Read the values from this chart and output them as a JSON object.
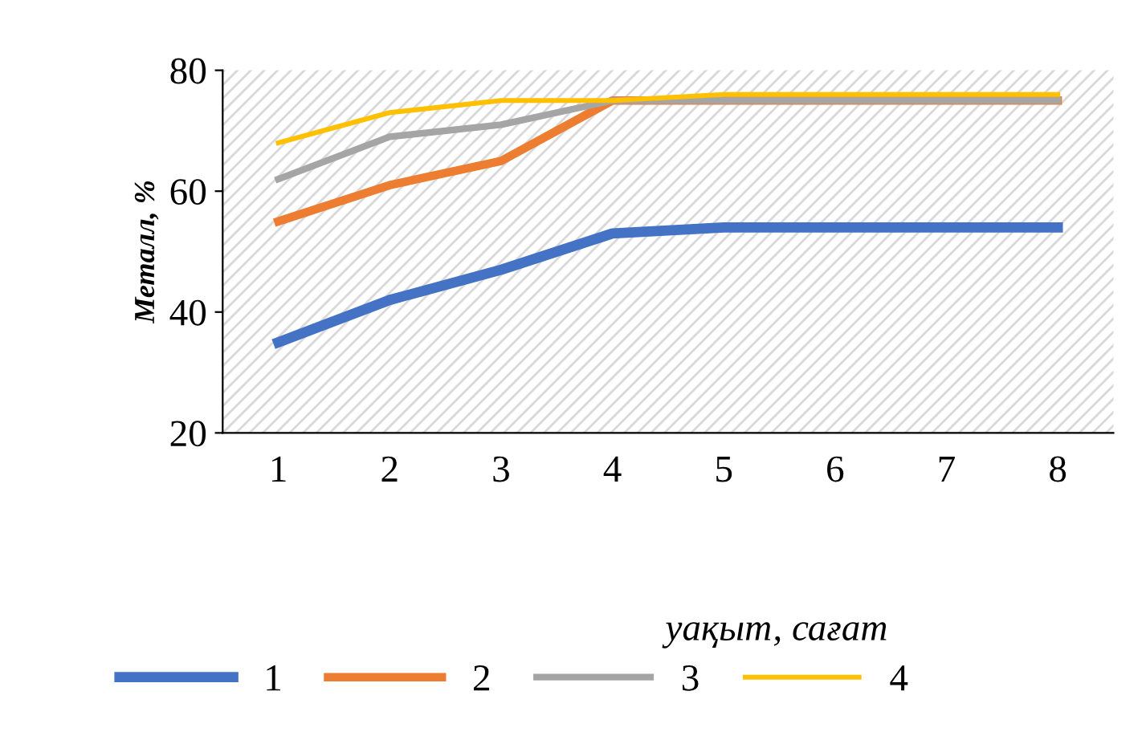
{
  "chart_data": {
    "type": "line",
    "xlabel": "уақыт, сағат",
    "ylabel": "Металл, %",
    "categories": [
      "1",
      "2",
      "3",
      "4",
      "5",
      "6",
      "7",
      "8"
    ],
    "series": [
      {
        "name": "1",
        "color": "#4472c4",
        "values": [
          35,
          42,
          47,
          53,
          54,
          54,
          54,
          54
        ]
      },
      {
        "name": "2",
        "color": "#ed7d31",
        "values": [
          55,
          61,
          65,
          75,
          75,
          75,
          75,
          75
        ]
      },
      {
        "name": "3",
        "color": "#a5a5a5",
        "values": [
          62,
          69,
          71,
          75,
          75,
          75,
          75,
          75
        ]
      },
      {
        "name": "4",
        "color": "#ffc000",
        "values": [
          68,
          73,
          75,
          75,
          76,
          76,
          76,
          76
        ]
      }
    ],
    "ylim": [
      20,
      80
    ],
    "yticks": [
      20,
      40,
      60,
      80
    ],
    "grid": false,
    "legend": "bottom",
    "marker": "none",
    "line_style": "solid"
  }
}
